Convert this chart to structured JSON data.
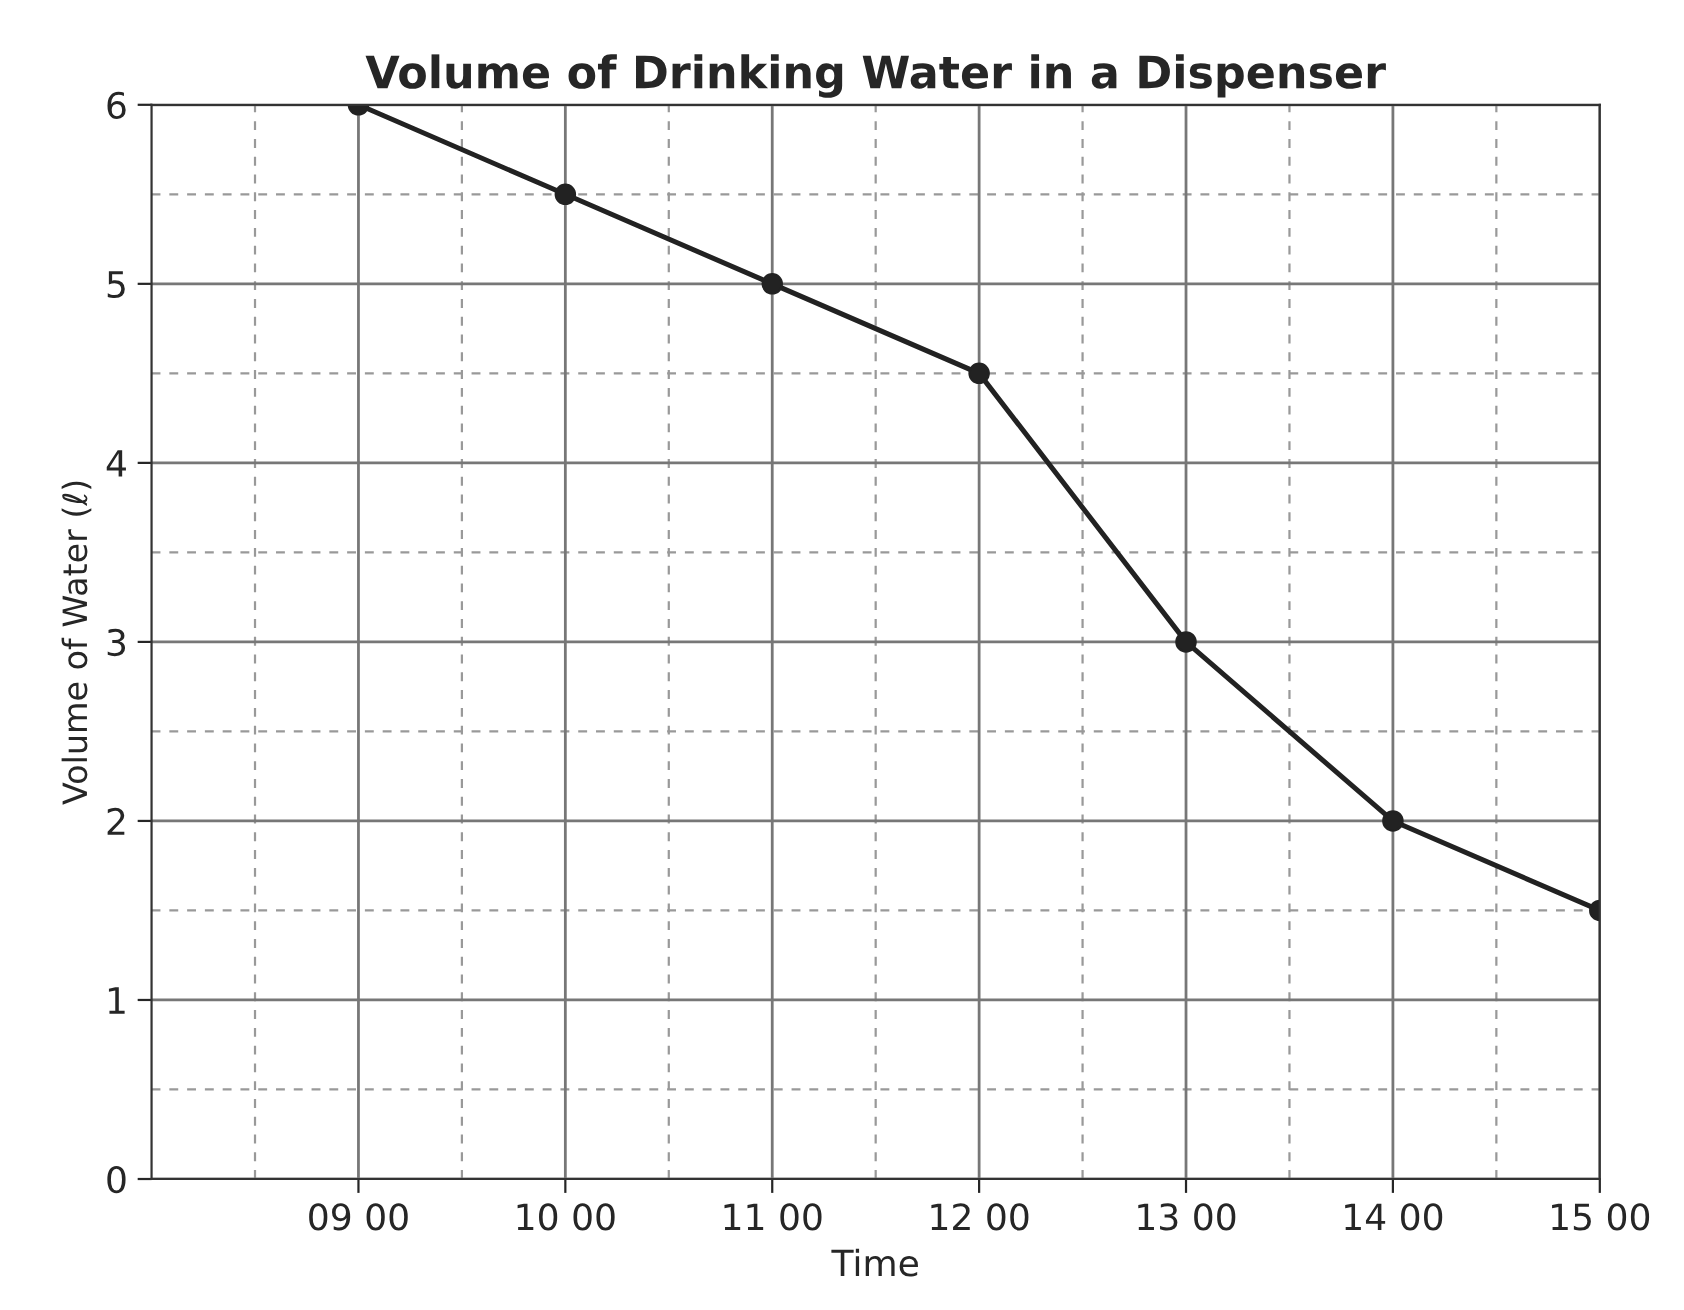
{
  "chart_data": {
    "type": "line",
    "title": "Volume of Drinking Water in a Dispenser",
    "xlabel": "Time",
    "ylabel": "Volume of Water (ℓ)",
    "categories": [
      "09 00",
      "10 00",
      "11 00",
      "12 00",
      "13 00",
      "14 00",
      "15 00"
    ],
    "series": [
      {
        "color": "#222222",
        "values": [
          6,
          5.5,
          5,
          4.5,
          3,
          2,
          1.5
        ]
      }
    ],
    "ylim": [
      0,
      6
    ],
    "yticks": [
      0,
      1,
      2,
      3,
      4,
      5,
      6
    ],
    "grid": true,
    "marker": "circle",
    "line_style": "solid"
  }
}
